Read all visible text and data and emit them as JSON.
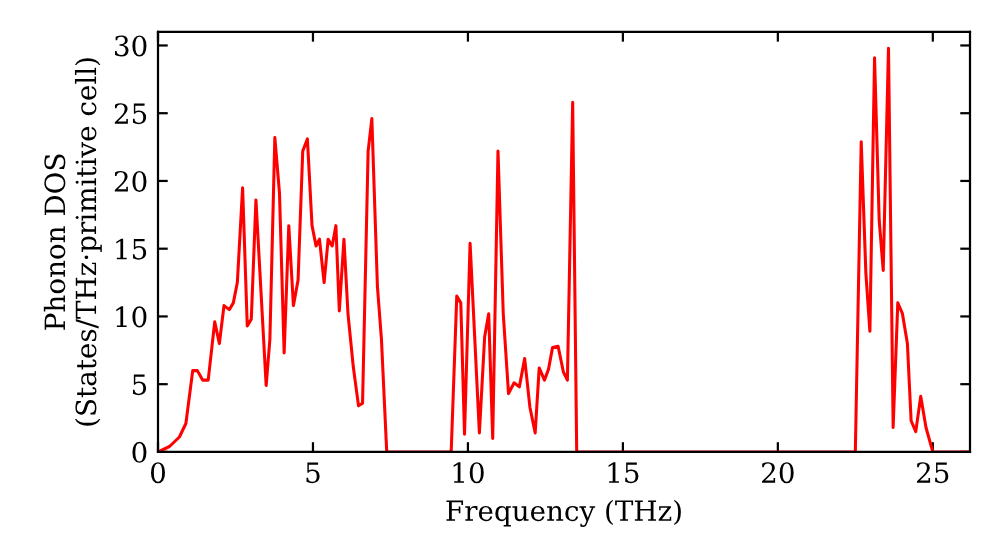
{
  "chart_data": {
    "type": "line",
    "xlabel": "Frequency (THz)",
    "ylabel": "Phonon DOS\n(States/THz·primitive cell)",
    "xlim": [
      0,
      26.2
    ],
    "ylim": [
      0,
      31
    ],
    "xticks": [
      0,
      5,
      10,
      15,
      20,
      25
    ],
    "yticks": [
      0,
      5,
      10,
      15,
      20,
      25,
      30
    ],
    "grid": false,
    "legend": false,
    "marker": "none",
    "line_style": "solid",
    "series": [
      {
        "color": "#ff0000",
        "x": [
          0,
          0.37,
          0.69,
          0.9,
          1.12,
          1.27,
          1.44,
          1.62,
          1.83,
          1.98,
          2.13,
          2.3,
          2.43,
          2.56,
          2.73,
          2.88,
          3.01,
          3.16,
          3.29,
          3.49,
          3.61,
          3.77,
          3.92,
          4.07,
          4.22,
          4.37,
          4.52,
          4.67,
          4.82,
          4.97,
          5.1,
          5.21,
          5.36,
          5.49,
          5.62,
          5.74,
          5.85,
          6.0,
          6.13,
          6.3,
          6.47,
          6.6,
          6.78,
          6.9,
          7.08,
          7.21,
          7.38,
          9.46,
          9.64,
          9.77,
          9.89,
          10.07,
          10.37,
          10.54,
          10.67,
          10.8,
          10.97,
          11.14,
          11.31,
          11.49,
          11.66,
          11.83,
          12.0,
          12.17,
          12.3,
          12.47,
          12.6,
          12.73,
          12.91,
          13.08,
          13.21,
          13.38,
          13.51,
          22.5,
          22.69,
          22.84,
          22.97,
          23.12,
          23.27,
          23.4,
          23.57,
          23.72,
          23.87,
          24.02,
          24.18,
          24.3,
          24.45,
          24.61,
          24.78,
          25.0,
          26.2
        ],
        "values": [
          0,
          0.4,
          1.1,
          2.1,
          6.0,
          6.0,
          5.3,
          5.3,
          9.6,
          8.0,
          10.8,
          10.5,
          11.0,
          12.5,
          19.5,
          9.3,
          9.8,
          18.6,
          13.2,
          4.9,
          8.3,
          23.2,
          19.1,
          7.3,
          16.7,
          10.8,
          12.7,
          22.2,
          23.1,
          16.7,
          15.2,
          15.7,
          12.5,
          15.7,
          15.2,
          16.7,
          10.4,
          15.7,
          10.2,
          6.3,
          3.4,
          3.6,
          22.2,
          24.6,
          12.2,
          8.3,
          0,
          0,
          11.5,
          11.0,
          1.3,
          15.4,
          1.4,
          8.5,
          10.2,
          1.0,
          22.2,
          10.2,
          4.3,
          5.1,
          4.8,
          6.9,
          3.3,
          1.4,
          6.2,
          5.3,
          6.1,
          7.7,
          7.8,
          5.9,
          5.3,
          25.8,
          0,
          0,
          22.9,
          13.2,
          8.9,
          29.1,
          17.1,
          13.4,
          29.8,
          1.8,
          11.0,
          10.2,
          8.0,
          2.3,
          1.5,
          4.1,
          1.8,
          0,
          0
        ]
      }
    ]
  }
}
